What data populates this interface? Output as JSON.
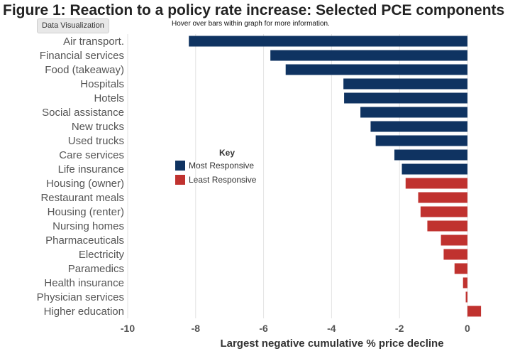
{
  "header": {
    "title": "Figure 1: Reaction to a policy rate increase: Selected PCE components",
    "badge": "Data Visualization",
    "subtitle": "Hover over bars within graph for more information."
  },
  "colors": {
    "most": "#0f3361",
    "least": "#c0322f",
    "grid": "#e3e3e3"
  },
  "chart_data": {
    "type": "bar",
    "orientation": "horizontal",
    "categories": [
      "Air transport.",
      "Financial services",
      "Food (takeaway)",
      "Hospitals",
      "Hotels",
      "Social assistance",
      "New trucks",
      "Used trucks",
      "Care services",
      "Life insurance",
      "Housing (owner)",
      "Restaurant meals",
      "Housing (renter)",
      "Nursing homes",
      "Pharmaceuticals",
      "Electricity",
      "Paramedics",
      "Health insurance",
      "Physician services",
      "Higher education"
    ],
    "values": [
      -8.2,
      -5.8,
      -5.35,
      -3.65,
      -3.63,
      -3.15,
      -2.85,
      -2.7,
      -2.15,
      -1.93,
      -1.82,
      -1.45,
      -1.38,
      -1.18,
      -0.78,
      -0.7,
      -0.38,
      -0.13,
      -0.05,
      0.4
    ],
    "groups": [
      "most",
      "most",
      "most",
      "most",
      "most",
      "most",
      "most",
      "most",
      "most",
      "most",
      "least",
      "least",
      "least",
      "least",
      "least",
      "least",
      "least",
      "least",
      "least",
      "least"
    ],
    "xlabel": "Largest negative cumulative % price decline",
    "xlim": [
      -10,
      1.4
    ],
    "xticks": [
      -10,
      -8,
      -6,
      -4,
      -2,
      0
    ],
    "grid": true,
    "legend": {
      "title": "Key",
      "placement": "center-left",
      "items": [
        {
          "key": "most",
          "label": "Most Responsive"
        },
        {
          "key": "least",
          "label": "Least Responsive"
        }
      ]
    }
  }
}
